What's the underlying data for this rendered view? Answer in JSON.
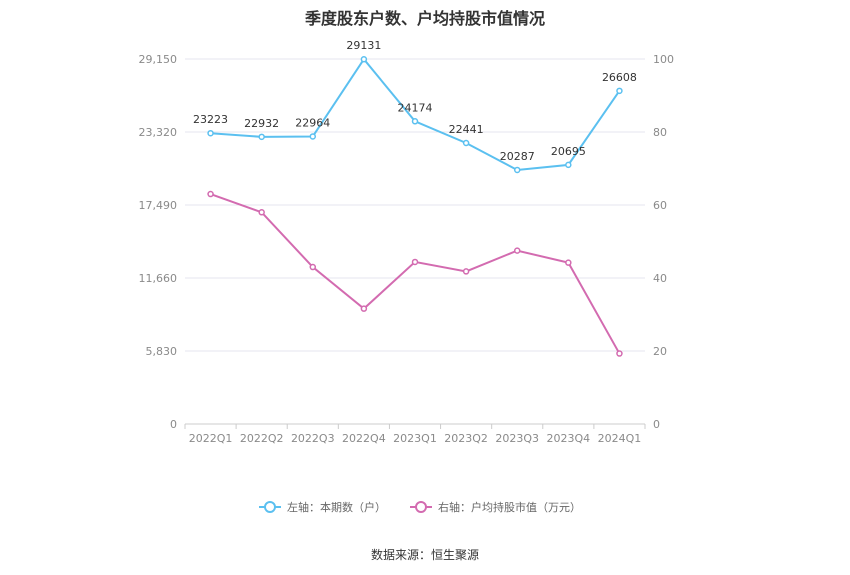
{
  "chart_data": {
    "type": "line",
    "title": "季度股东户数、户均持股市值情况",
    "categories": [
      "2022Q1",
      "2022Q2",
      "2022Q3",
      "2022Q4",
      "2023Q1",
      "2023Q2",
      "2023Q3",
      "2023Q4",
      "2024Q1"
    ],
    "left_axis": {
      "ticks": [
        "0",
        "5,830",
        "11,660",
        "17,490",
        "23,320",
        "29,150"
      ],
      "range": [
        0,
        29150
      ]
    },
    "right_axis": {
      "ticks": [
        "0",
        "20",
        "40",
        "60",
        "80",
        "100"
      ],
      "range": [
        0,
        100
      ]
    },
    "grid": true,
    "legend_position": "bottom",
    "series": [
      {
        "name": "左轴：本期数（户）",
        "axis": "left",
        "color": "#5bc0f0",
        "values": [
          23223,
          22932,
          22964,
          29131,
          24174,
          22441,
          20287,
          20695,
          26608
        ],
        "labels": [
          "23223",
          "22932",
          "22964",
          "29131",
          "24174",
          "22441",
          "20287",
          "20695",
          "26608"
        ]
      },
      {
        "name": "右轴：户均持股市值（万元）",
        "axis": "right",
        "color": "#d36bb0",
        "values": [
          63.0,
          58.0,
          43.0,
          31.6,
          44.4,
          41.8,
          47.5,
          44.2,
          19.3
        ]
      }
    ]
  },
  "source": "数据来源：恒生聚源"
}
